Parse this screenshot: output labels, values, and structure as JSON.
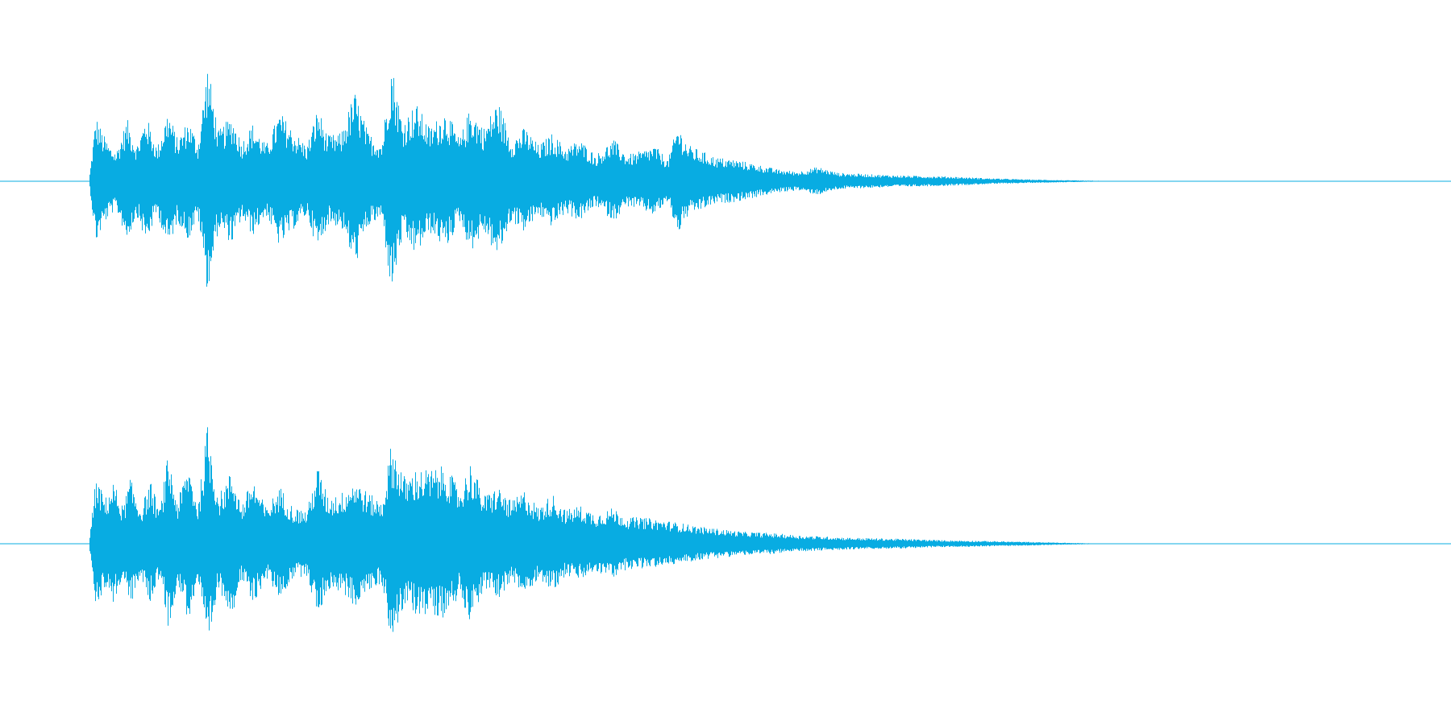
{
  "waveform": {
    "color": "#08ace2",
    "background": "#ffffff",
    "channels": [
      {
        "name": "",
        "envelope": [
          [
            0.0,
            0.0
          ],
          [
            0.005,
            0.55
          ],
          [
            0.01,
            0.4
          ],
          [
            0.015,
            0.3
          ],
          [
            0.02,
            0.25
          ],
          [
            0.028,
            0.52
          ],
          [
            0.035,
            0.3
          ],
          [
            0.042,
            0.55
          ],
          [
            0.05,
            0.28
          ],
          [
            0.058,
            0.6
          ],
          [
            0.065,
            0.35
          ],
          [
            0.073,
            0.52
          ],
          [
            0.08,
            0.32
          ],
          [
            0.087,
            0.98
          ],
          [
            0.095,
            0.42
          ],
          [
            0.105,
            0.55
          ],
          [
            0.112,
            0.33
          ],
          [
            0.12,
            0.48
          ],
          [
            0.13,
            0.3
          ],
          [
            0.14,
            0.58
          ],
          [
            0.15,
            0.42
          ],
          [
            0.16,
            0.3
          ],
          [
            0.168,
            0.62
          ],
          [
            0.175,
            0.38
          ],
          [
            0.185,
            0.4
          ],
          [
            0.195,
            0.75
          ],
          [
            0.205,
            0.4
          ],
          [
            0.215,
            0.33
          ],
          [
            0.222,
            1.0
          ],
          [
            0.23,
            0.5
          ],
          [
            0.24,
            0.65
          ],
          [
            0.25,
            0.45
          ],
          [
            0.262,
            0.6
          ],
          [
            0.272,
            0.35
          ],
          [
            0.28,
            0.62
          ],
          [
            0.29,
            0.45
          ],
          [
            0.3,
            0.68
          ],
          [
            0.31,
            0.35
          ],
          [
            0.32,
            0.45
          ],
          [
            0.33,
            0.3
          ],
          [
            0.34,
            0.4
          ],
          [
            0.35,
            0.28
          ],
          [
            0.36,
            0.35
          ],
          [
            0.372,
            0.22
          ],
          [
            0.385,
            0.35
          ],
          [
            0.395,
            0.22
          ],
          [
            0.405,
            0.25
          ],
          [
            0.415,
            0.3
          ],
          [
            0.425,
            0.18
          ],
          [
            0.432,
            0.47
          ],
          [
            0.44,
            0.3
          ],
          [
            0.45,
            0.25
          ],
          [
            0.46,
            0.2
          ],
          [
            0.475,
            0.18
          ],
          [
            0.49,
            0.14
          ],
          [
            0.505,
            0.1
          ],
          [
            0.52,
            0.08
          ],
          [
            0.535,
            0.12
          ],
          [
            0.55,
            0.07
          ],
          [
            0.57,
            0.06
          ],
          [
            0.59,
            0.05
          ],
          [
            0.61,
            0.045
          ],
          [
            0.63,
            0.04
          ],
          [
            0.66,
            0.025
          ],
          [
            0.69,
            0.015
          ],
          [
            0.72,
            0.008
          ],
          [
            0.74,
            0.004
          ],
          [
            0.76,
            0.0
          ],
          [
            1.0,
            0.0
          ]
        ]
      },
      {
        "name": "",
        "envelope": [
          [
            0.0,
            0.0
          ],
          [
            0.005,
            0.55
          ],
          [
            0.012,
            0.38
          ],
          [
            0.018,
            0.52
          ],
          [
            0.025,
            0.3
          ],
          [
            0.03,
            0.55
          ],
          [
            0.038,
            0.3
          ],
          [
            0.045,
            0.52
          ],
          [
            0.052,
            0.28
          ],
          [
            0.058,
            0.75
          ],
          [
            0.065,
            0.35
          ],
          [
            0.073,
            0.68
          ],
          [
            0.08,
            0.32
          ],
          [
            0.087,
            1.0
          ],
          [
            0.095,
            0.4
          ],
          [
            0.105,
            0.62
          ],
          [
            0.112,
            0.32
          ],
          [
            0.12,
            0.55
          ],
          [
            0.13,
            0.3
          ],
          [
            0.14,
            0.48
          ],
          [
            0.15,
            0.3
          ],
          [
            0.16,
            0.28
          ],
          [
            0.168,
            0.65
          ],
          [
            0.175,
            0.4
          ],
          [
            0.185,
            0.42
          ],
          [
            0.195,
            0.55
          ],
          [
            0.205,
            0.42
          ],
          [
            0.215,
            0.35
          ],
          [
            0.222,
            0.85
          ],
          [
            0.232,
            0.55
          ],
          [
            0.24,
            0.62
          ],
          [
            0.252,
            0.62
          ],
          [
            0.262,
            0.65
          ],
          [
            0.272,
            0.45
          ],
          [
            0.28,
            0.68
          ],
          [
            0.29,
            0.4
          ],
          [
            0.3,
            0.48
          ],
          [
            0.31,
            0.35
          ],
          [
            0.32,
            0.45
          ],
          [
            0.33,
            0.3
          ],
          [
            0.34,
            0.42
          ],
          [
            0.35,
            0.28
          ],
          [
            0.36,
            0.32
          ],
          [
            0.372,
            0.25
          ],
          [
            0.385,
            0.3
          ],
          [
            0.395,
            0.22
          ],
          [
            0.405,
            0.22
          ],
          [
            0.42,
            0.2
          ],
          [
            0.435,
            0.17
          ],
          [
            0.45,
            0.14
          ],
          [
            0.465,
            0.12
          ],
          [
            0.48,
            0.1
          ],
          [
            0.5,
            0.09
          ],
          [
            0.52,
            0.07
          ],
          [
            0.54,
            0.06
          ],
          [
            0.56,
            0.05
          ],
          [
            0.58,
            0.045
          ],
          [
            0.6,
            0.04
          ],
          [
            0.625,
            0.03
          ],
          [
            0.65,
            0.025
          ],
          [
            0.68,
            0.018
          ],
          [
            0.71,
            0.01
          ],
          [
            0.73,
            0.005
          ],
          [
            0.75,
            0.0
          ],
          [
            1.0,
            0.0
          ]
        ]
      }
    ]
  }
}
